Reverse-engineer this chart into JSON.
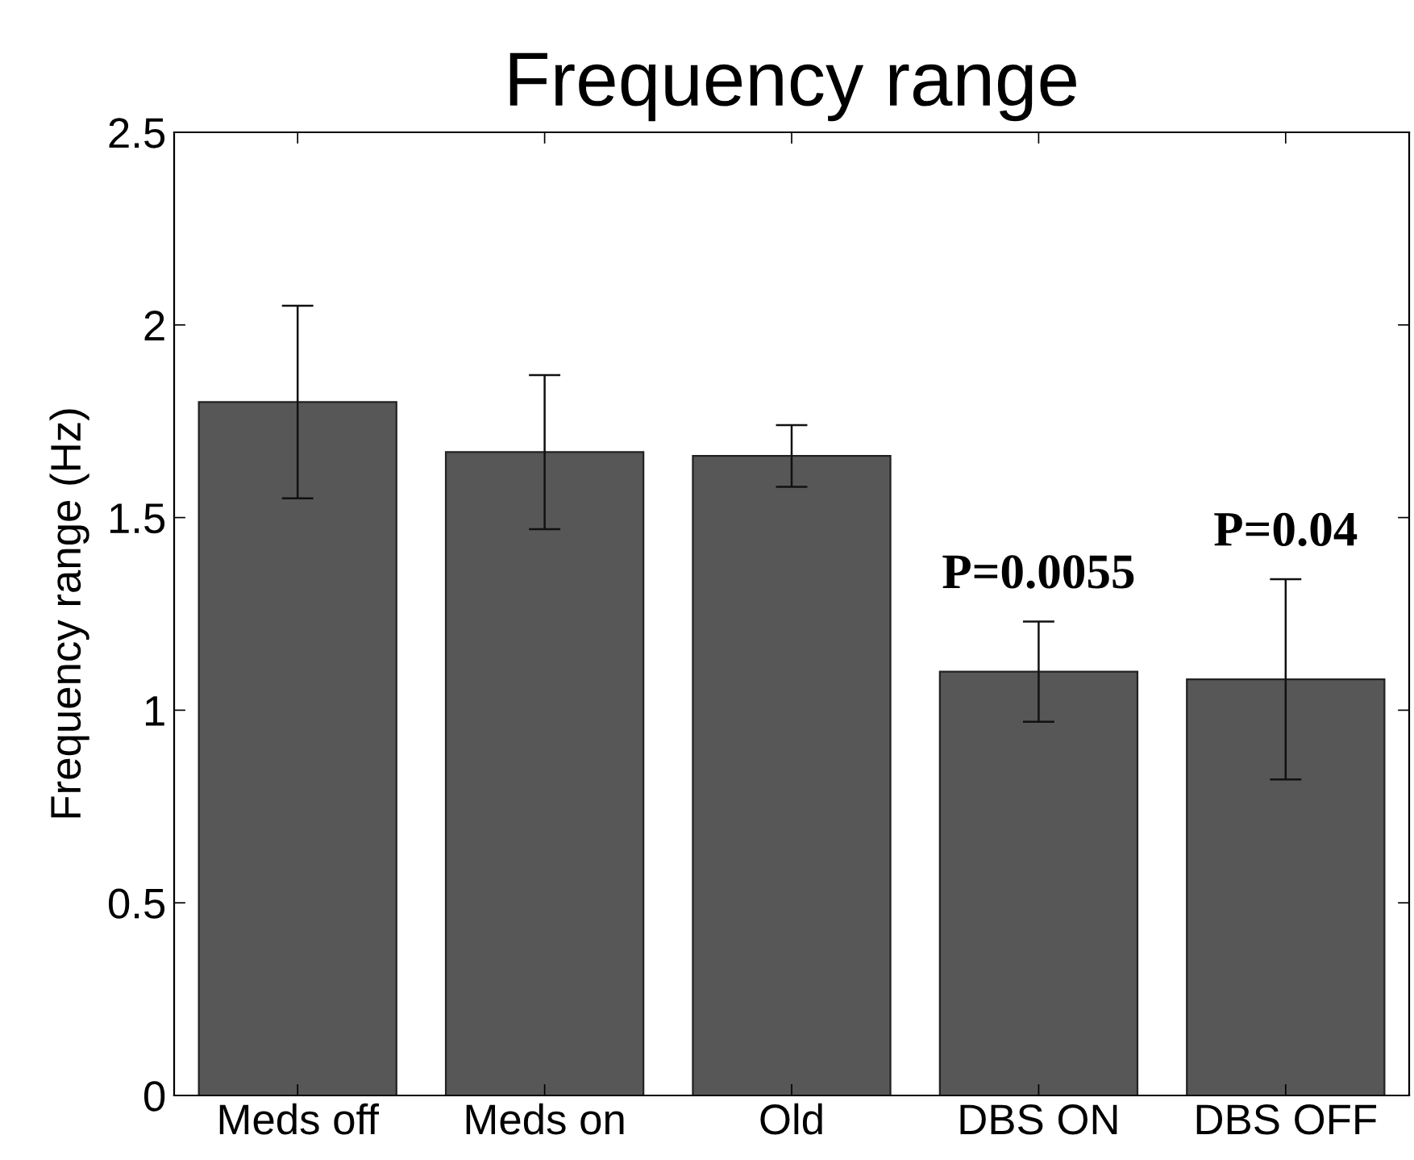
{
  "chart_data": {
    "type": "bar",
    "title": "Frequency range",
    "ylabel": "Frequency range (Hz)",
    "categories": [
      "Meds off",
      "Meds on",
      "Old",
      "DBS ON",
      "DBS OFF"
    ],
    "values": [
      1.8,
      1.67,
      1.66,
      1.1,
      1.08
    ],
    "errors": [
      0.25,
      0.2,
      0.08,
      0.13,
      0.26
    ],
    "color": "#575757",
    "ylim": [
      0,
      2.5
    ],
    "yticks": [
      0,
      0.5,
      1,
      1.5,
      2,
      2.5
    ],
    "grid": false,
    "annotations": [
      "P=0.0055",
      "P=0.04"
    ]
  }
}
